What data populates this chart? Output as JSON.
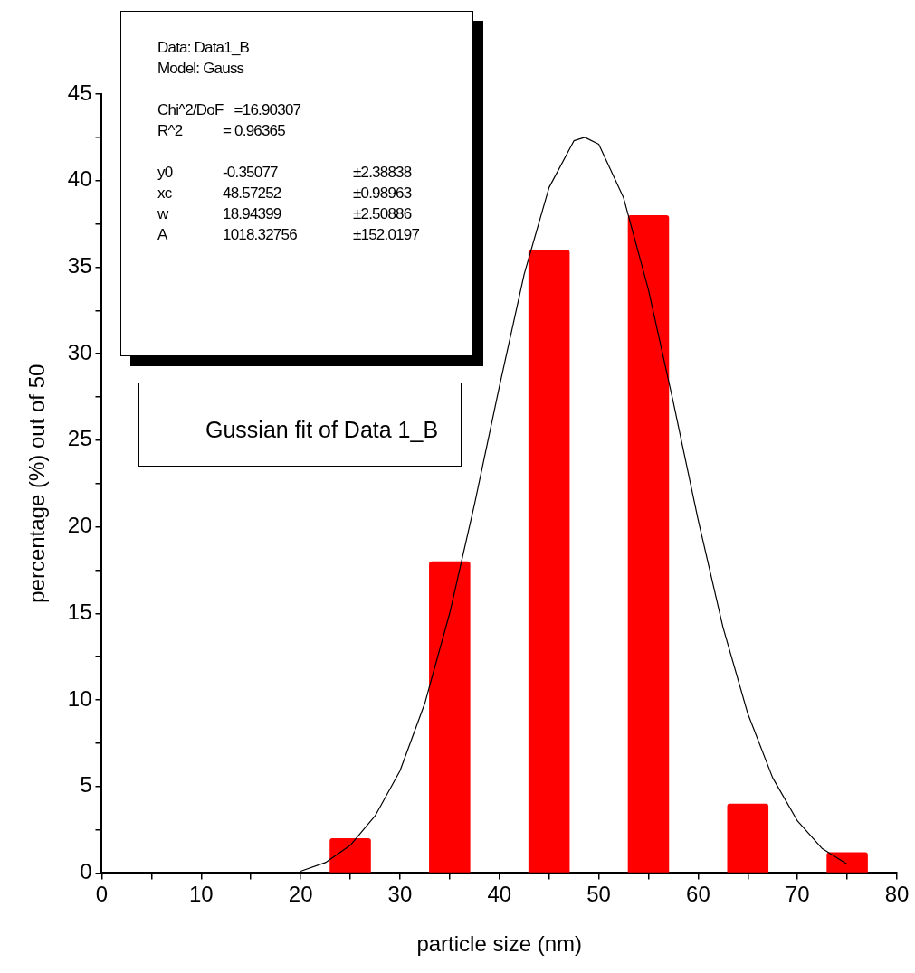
{
  "chart_data": {
    "type": "histogram",
    "xlabel": "particle size (nm)",
    "ylabel": "percentage (%) out of 50",
    "bins": [
      20,
      30,
      40,
      50,
      60,
      70,
      80
    ],
    "values": [
      2,
      18,
      36,
      38,
      4,
      1.2
    ],
    "color": "#ff0000",
    "series": [
      {
        "type": "line",
        "name": "Gussian fit of Data 1_B",
        "color": "#000000",
        "x": [
          20,
          22.5,
          25,
          27.5,
          30,
          32.5,
          35,
          37.5,
          40,
          42.5,
          45,
          47.5,
          48.6,
          50,
          52.5,
          55,
          57.5,
          60,
          62.5,
          65,
          67.5,
          70,
          72.5,
          75
        ],
        "values": [
          0.1,
          0.6,
          1.6,
          3.3,
          5.9,
          9.8,
          15.0,
          21.3,
          28.1,
          34.6,
          39.6,
          42.3,
          42.5,
          42.1,
          39.0,
          33.7,
          27.2,
          20.4,
          14.2,
          9.2,
          5.5,
          3.0,
          1.4,
          0.5
        ]
      }
    ],
    "xlim": [
      0,
      80
    ],
    "xticks": [
      0,
      {
        "value": 5,
        "label": null
      },
      10,
      {
        "value": 15,
        "label": null
      },
      20,
      {
        "value": 25,
        "label": null
      },
      30,
      {
        "value": 35,
        "label": null
      },
      40,
      {
        "value": 45,
        "label": null
      },
      50,
      {
        "value": 55,
        "label": null
      },
      60,
      {
        "value": 65,
        "label": null
      },
      70,
      {
        "value": 75,
        "label": null
      },
      80
    ],
    "ylim": [
      0,
      45
    ],
    "yticks": [
      0,
      {
        "value": 2.5,
        "label": null
      },
      5,
      {
        "value": 7.5,
        "label": null
      },
      10,
      {
        "value": 12.5,
        "label": null
      },
      15,
      {
        "value": 17.5,
        "label": null
      },
      20,
      {
        "value": 22.5,
        "label": null
      },
      25,
      {
        "value": 27.5,
        "label": null
      },
      30,
      {
        "value": 32.5,
        "label": null
      },
      35,
      {
        "value": 37.5,
        "label": null
      },
      40,
      {
        "value": 42.5,
        "label": null
      },
      45
    ],
    "grid": false,
    "legend": "top left",
    "marker": "none",
    "line_style": "solid",
    "annotations": [
      "Data: Data1_B",
      "Model: Gauss",
      "Chi^2/DoF\t=16.90307",
      "R^2\t= 0.96365",
      "y0\t-0.35077\t±2.38838",
      "xc\t48.57252\t±0.98963",
      "w\t18.94399\t±2.50886",
      "A\t1018.32756\t±152.0197"
    ]
  }
}
